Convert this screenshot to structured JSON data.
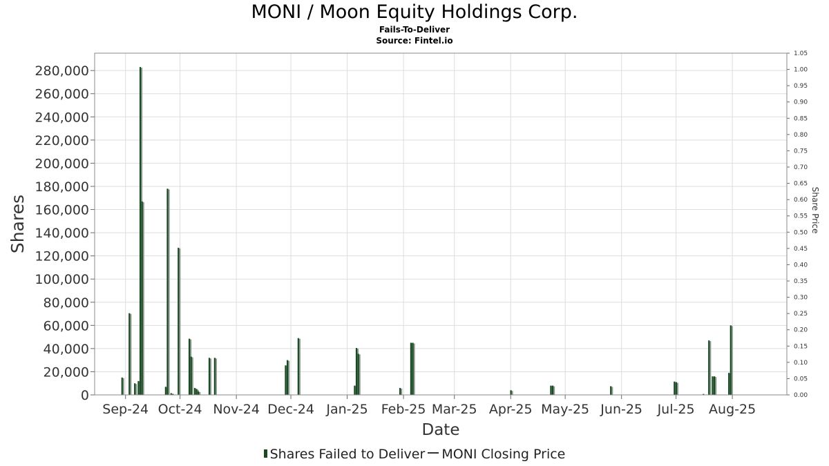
{
  "chart_data": {
    "type": "bar",
    "title": "MONI / Moon Equity Holdings Corp.",
    "subtitle": "Fails-To-Deliver",
    "source": "Source: Fintel.io",
    "xlabel": "Date",
    "ylabel": "Shares",
    "y2label": "Share Price",
    "x_range": [
      "2024-08-15",
      "2025-08-31"
    ],
    "ylim": [
      0,
      295000
    ],
    "y2lim": [
      0,
      1.05
    ],
    "grid": true,
    "legend_position": "bottom",
    "colors": {
      "bars": "#1a4a24",
      "bars_shadow": "#8a9a8c",
      "line": "#333333",
      "grid": "#dddddd"
    },
    "x_ticks": [
      {
        "label": "Sep-24",
        "date": "2024-09-01"
      },
      {
        "label": "Oct-24",
        "date": "2024-10-01"
      },
      {
        "label": "Nov-24",
        "date": "2024-11-01"
      },
      {
        "label": "Dec-24",
        "date": "2024-12-01"
      },
      {
        "label": "Jan-25",
        "date": "2025-01-01"
      },
      {
        "label": "Feb-25",
        "date": "2025-02-01"
      },
      {
        "label": "Mar-25",
        "date": "2025-03-01"
      },
      {
        "label": "Apr-25",
        "date": "2025-04-01"
      },
      {
        "label": "May-25",
        "date": "2025-05-01"
      },
      {
        "label": "Jun-25",
        "date": "2025-06-01"
      },
      {
        "label": "Jul-25",
        "date": "2025-07-01"
      },
      {
        "label": "Aug-25",
        "date": "2025-08-01"
      }
    ],
    "y_ticks": [
      "0",
      "20,000",
      "40,000",
      "60,000",
      "80,000",
      "100,000",
      "120,000",
      "140,000",
      "160,000",
      "180,000",
      "200,000",
      "220,000",
      "240,000",
      "260,000",
      "280,000"
    ],
    "y2_ticks": [
      "0.00",
      "0.05",
      "0.10",
      "0.15",
      "0.20",
      "0.25",
      "0.30",
      "0.35",
      "0.40",
      "0.45",
      "0.50",
      "0.55",
      "0.60",
      "0.65",
      "0.70",
      "0.75",
      "0.80",
      "0.85",
      "0.90",
      "0.95",
      "1.00",
      "1.05"
    ],
    "series": [
      {
        "name": "Shares Failed to Deliver",
        "points": [
          {
            "date": "2024-08-30",
            "value": 15000
          },
          {
            "date": "2024-09-03",
            "value": 70500
          },
          {
            "date": "2024-09-06",
            "value": 10000
          },
          {
            "date": "2024-09-08",
            "value": 12000
          },
          {
            "date": "2024-09-09",
            "value": 283000
          },
          {
            "date": "2024-09-10",
            "value": 167000
          },
          {
            "date": "2024-09-23",
            "value": 7000
          },
          {
            "date": "2024-09-24",
            "value": 178000
          },
          {
            "date": "2024-09-26",
            "value": 1500
          },
          {
            "date": "2024-09-27",
            "value": 800
          },
          {
            "date": "2024-09-30",
            "value": 127000
          },
          {
            "date": "2024-10-06",
            "value": 48500
          },
          {
            "date": "2024-10-07",
            "value": 33000
          },
          {
            "date": "2024-10-09",
            "value": 6000
          },
          {
            "date": "2024-10-10",
            "value": 5000
          },
          {
            "date": "2024-10-11",
            "value": 3000
          },
          {
            "date": "2024-10-17",
            "value": 32000
          },
          {
            "date": "2024-10-20",
            "value": 32000
          },
          {
            "date": "2024-11-28",
            "value": 25500
          },
          {
            "date": "2024-11-29",
            "value": 30000
          },
          {
            "date": "2024-12-05",
            "value": 49000
          },
          {
            "date": "2025-01-05",
            "value": 8000
          },
          {
            "date": "2025-01-06",
            "value": 40500
          },
          {
            "date": "2025-01-07",
            "value": 35500
          },
          {
            "date": "2025-01-30",
            "value": 6000
          },
          {
            "date": "2025-02-05",
            "value": 45000
          },
          {
            "date": "2025-02-06",
            "value": 45000
          },
          {
            "date": "2025-04-01",
            "value": 4000
          },
          {
            "date": "2025-04-23",
            "value": 8000
          },
          {
            "date": "2025-04-24",
            "value": 8000
          },
          {
            "date": "2025-05-26",
            "value": 7500
          },
          {
            "date": "2025-06-30",
            "value": 11500
          },
          {
            "date": "2025-07-01",
            "value": 11000
          },
          {
            "date": "2025-07-16",
            "value": 800
          },
          {
            "date": "2025-07-19",
            "value": 47000
          },
          {
            "date": "2025-07-21",
            "value": 16000
          },
          {
            "date": "2025-07-22",
            "value": 16000
          },
          {
            "date": "2025-07-30",
            "value": 19000
          },
          {
            "date": "2025-07-31",
            "value": 60000
          }
        ]
      },
      {
        "name": "MONI Closing Price",
        "points": []
      }
    ]
  }
}
